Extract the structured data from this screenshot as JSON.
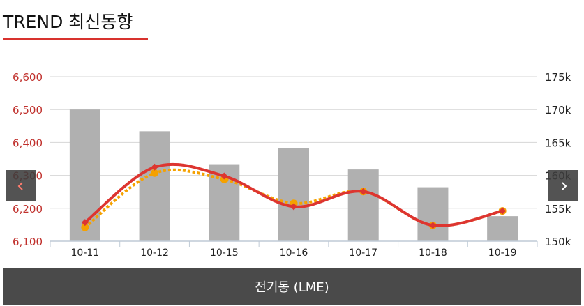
{
  "header": {
    "title": "TREND 최신동향"
  },
  "footer": {
    "label": "전기동 (LME)"
  },
  "nav": {
    "prev_icon": "chevron-left-icon",
    "next_icon": "chevron-right-icon"
  },
  "colors": {
    "accent": "#d8322e",
    "bars": "#b0b0b0",
    "secondary_line": "#f5a100",
    "footer_bg": "#4a4a4a"
  },
  "chart_data": {
    "type": "bar",
    "categories": [
      "10-11",
      "10-12",
      "10-15",
      "10-16",
      "10-17",
      "10-18",
      "10-19"
    ],
    "left_axis": {
      "min": 6100,
      "max": 6600,
      "ticks": [
        "6,600",
        "6,500",
        "6,400",
        "6,300",
        "6,200",
        "6,100"
      ]
    },
    "right_axis": {
      "min": 150000,
      "max": 175000,
      "ticks": [
        "175k",
        "170k",
        "165k",
        "160k",
        "155k",
        "150k"
      ]
    },
    "series": [
      {
        "type": "bar",
        "axis": "right",
        "values": [
          170000,
          166700,
          161700,
          164100,
          160900,
          158200,
          153800
        ]
      },
      {
        "type": "line",
        "axis": "left",
        "style": "solid",
        "values": [
          6157,
          6325,
          6298,
          6205,
          6251,
          6148,
          6192
        ]
      },
      {
        "type": "line",
        "axis": "left",
        "style": "dotted",
        "values": [
          6142,
          6307,
          6288,
          6215,
          6251,
          6148,
          6192
        ]
      }
    ],
    "grid": true
  }
}
